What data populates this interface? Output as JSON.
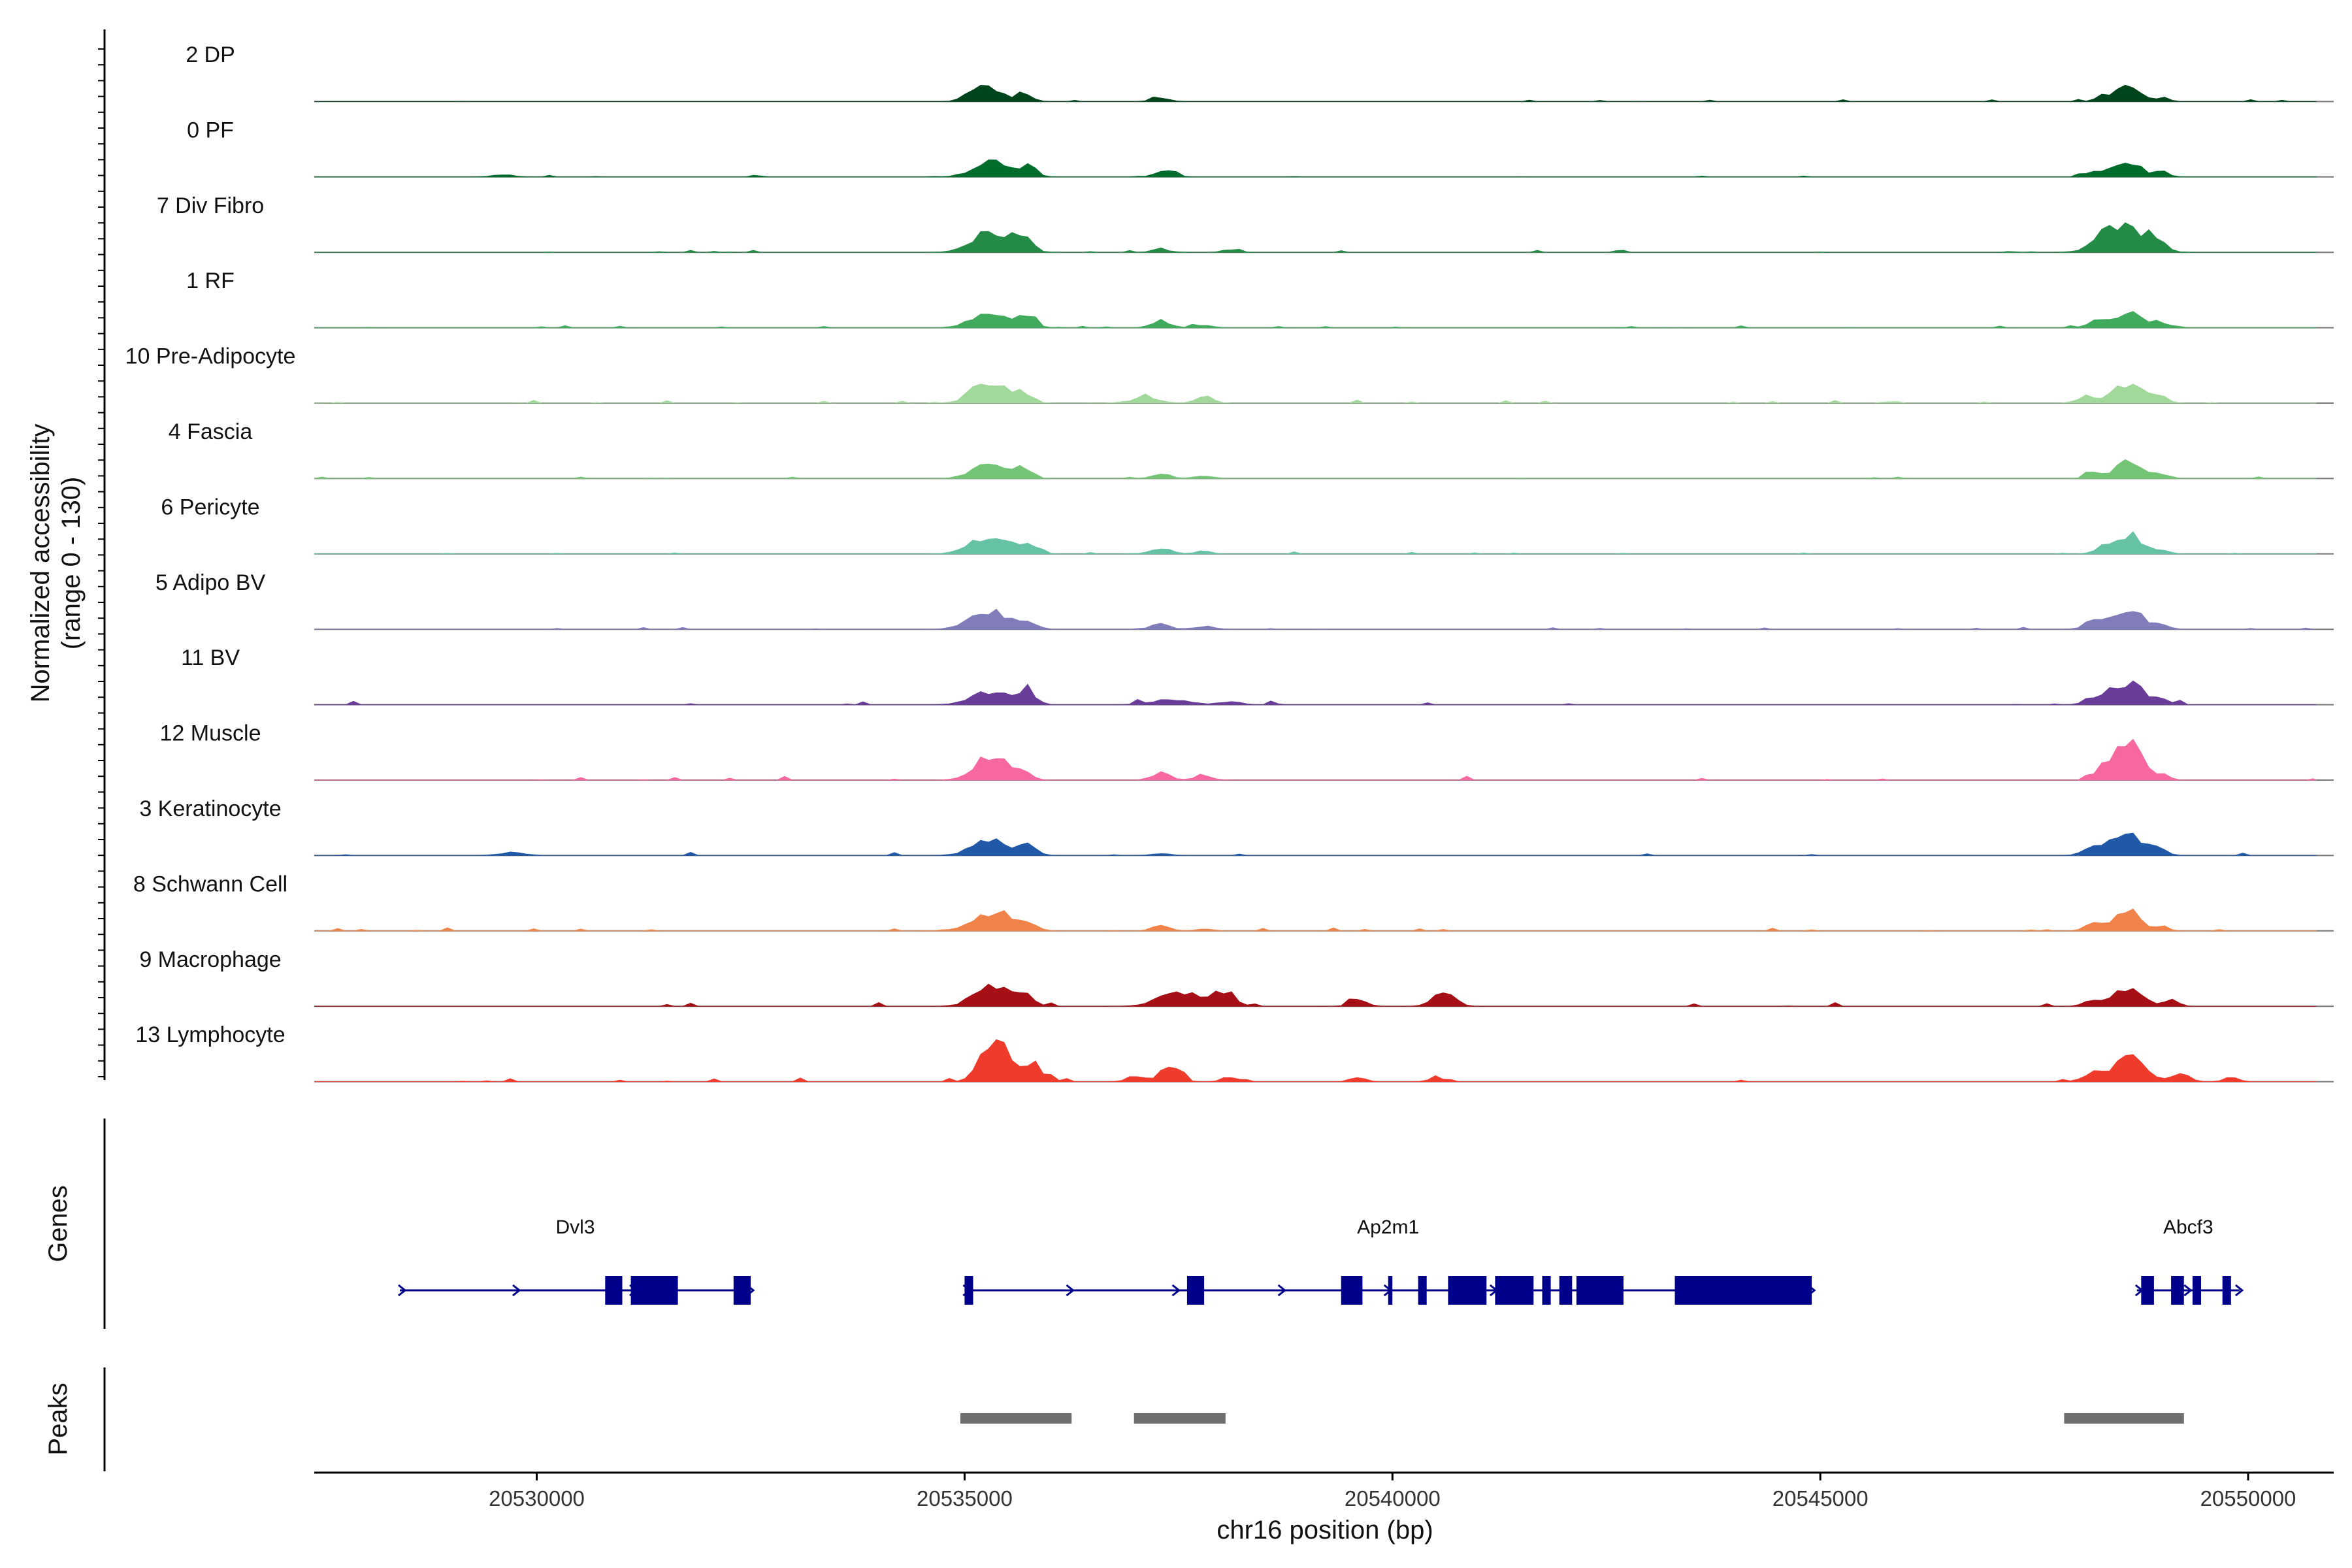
{
  "chart_data": {
    "type": "area",
    "chromosome": "chr16",
    "xlabel": "chr16 position (bp)",
    "ylabel": "Normalized accessibility",
    "ylabel_sub": "(range 0 - 130)",
    "ylim": [
      0,
      130
    ],
    "xlim": [
      20527400,
      20551000
    ],
    "x_ticks": [
      20530000,
      20535000,
      20540000,
      20545000,
      20550000
    ],
    "x_tick_labels": [
      "20530000",
      "20535000",
      "20540000",
      "20545000",
      "20550000"
    ],
    "coverage_range": [
      20527400,
      20550800
    ],
    "series": [
      {
        "name": "2 DP",
        "color": "#00441b",
        "peaks": [
          [
            20535250,
            30,
            170
          ],
          [
            20535700,
            18,
            90
          ],
          [
            20537300,
            8,
            100
          ],
          [
            20548600,
            36,
            140
          ],
          [
            20548300,
            10,
            90
          ],
          [
            20549000,
            8,
            70
          ]
        ],
        "noise": 2
      },
      {
        "name": "0 PF",
        "color": "#006d2c",
        "peaks": [
          [
            20529600,
            5,
            120
          ],
          [
            20535300,
            30,
            200
          ],
          [
            20535750,
            20,
            90
          ],
          [
            20537350,
            13,
            110
          ],
          [
            20548600,
            34,
            150
          ],
          [
            20548200,
            14,
            100
          ],
          [
            20549000,
            10,
            80
          ]
        ],
        "noise": 2
      },
      {
        "name": "7 Div Fibro",
        "color": "#238b45",
        "peaks": [
          [
            20535350,
            44,
            230
          ],
          [
            20535700,
            26,
            80
          ],
          [
            20537300,
            6,
            110
          ],
          [
            20538100,
            6,
            90
          ],
          [
            20548500,
            54,
            220
          ],
          [
            20548900,
            22,
            120
          ]
        ],
        "noise": 2
      },
      {
        "name": "1 RF",
        "color": "#41ab5d",
        "peaks": [
          [
            20535300,
            32,
            200
          ],
          [
            20535750,
            20,
            90
          ],
          [
            20537300,
            13,
            110
          ],
          [
            20537800,
            6,
            100
          ],
          [
            20548600,
            36,
            150
          ],
          [
            20548200,
            12,
            90
          ],
          [
            20549000,
            10,
            80
          ]
        ],
        "noise": 2
      },
      {
        "name": "10 Pre-Adipocyte",
        "color": "#a1d99b",
        "peaks": [
          [
            20535300,
            40,
            200
          ],
          [
            20535700,
            18,
            90
          ],
          [
            20537100,
            10,
            160
          ],
          [
            20537800,
            14,
            100
          ],
          [
            20548600,
            42,
            160
          ],
          [
            20548100,
            12,
            100
          ],
          [
            20549000,
            12,
            80
          ]
        ],
        "noise": 3
      },
      {
        "name": "4 Fascia",
        "color": "#74c476",
        "peaks": [
          [
            20535300,
            30,
            200
          ],
          [
            20535700,
            20,
            90
          ],
          [
            20537300,
            11,
            100
          ],
          [
            20537800,
            6,
            100
          ],
          [
            20548600,
            36,
            150
          ],
          [
            20548200,
            13,
            90
          ],
          [
            20549000,
            9,
            80
          ]
        ],
        "noise": 2
      },
      {
        "name": "6 Pericyte",
        "color": "#66c2a4",
        "peaks": [
          [
            20535300,
            34,
            220
          ],
          [
            20535750,
            20,
            100
          ],
          [
            20537300,
            10,
            120
          ],
          [
            20537800,
            6,
            90
          ],
          [
            20548600,
            40,
            150
          ],
          [
            20548300,
            12,
            100
          ],
          [
            20549000,
            8,
            80
          ]
        ],
        "noise": 2
      },
      {
        "name": "5 Adipo BV",
        "color": "#807dba",
        "peaks": [
          [
            20535300,
            36,
            220
          ],
          [
            20535750,
            16,
            90
          ],
          [
            20537300,
            12,
            100
          ],
          [
            20537800,
            6,
            120
          ],
          [
            20548600,
            42,
            160
          ],
          [
            20548200,
            18,
            110
          ],
          [
            20549000,
            8,
            90
          ]
        ],
        "noise": 2
      },
      {
        "name": "11 BV",
        "color": "#6a3d9a",
        "peaks": [
          [
            20535300,
            26,
            220
          ],
          [
            20535750,
            24,
            90
          ],
          [
            20537400,
            10,
            220
          ],
          [
            20538100,
            6,
            120
          ],
          [
            20548600,
            48,
            160
          ],
          [
            20548200,
            16,
            100
          ],
          [
            20549000,
            10,
            90
          ]
        ],
        "noise": 4
      },
      {
        "name": "12 Muscle",
        "color": "#f768a1",
        "peaks": [
          [
            20535300,
            54,
            180
          ],
          [
            20535700,
            16,
            90
          ],
          [
            20537300,
            14,
            110
          ],
          [
            20537800,
            8,
            100
          ],
          [
            20548600,
            74,
            150
          ],
          [
            20548300,
            20,
            100
          ],
          [
            20549000,
            10,
            80
          ]
        ],
        "noise": 4
      },
      {
        "name": "3 Keratinocyte",
        "color": "#2158a8",
        "peaks": [
          [
            20535300,
            34,
            200
          ],
          [
            20535750,
            20,
            100
          ],
          [
            20529700,
            6,
            150
          ],
          [
            20537300,
            4,
            100
          ],
          [
            20548600,
            44,
            180
          ],
          [
            20548200,
            20,
            110
          ],
          [
            20549000,
            8,
            80
          ]
        ],
        "noise": 3
      },
      {
        "name": "8 Schwann Cell",
        "color": "#f0834a",
        "peaks": [
          [
            20535300,
            36,
            220
          ],
          [
            20535750,
            16,
            100
          ],
          [
            20537300,
            11,
            100
          ],
          [
            20537800,
            4,
            100
          ],
          [
            20548600,
            40,
            150
          ],
          [
            20548200,
            14,
            100
          ],
          [
            20549000,
            8,
            80
          ]
        ],
        "noise": 3
      },
      {
        "name": "9 Macrophage",
        "color": "#a50f15",
        "peaks": [
          [
            20535300,
            48,
            180
          ],
          [
            20535700,
            24,
            100
          ],
          [
            20537500,
            28,
            220
          ],
          [
            20538000,
            26,
            150
          ],
          [
            20539600,
            12,
            100
          ],
          [
            20540600,
            28,
            120
          ],
          [
            20548600,
            40,
            150
          ],
          [
            20548200,
            14,
            100
          ],
          [
            20549100,
            12,
            80
          ]
        ],
        "noise": 4
      },
      {
        "name": "13 Lymphocyte",
        "color": "#ef3b2c",
        "peaks": [
          [
            20535350,
            95,
            150
          ],
          [
            20535800,
            28,
            140
          ],
          [
            20537400,
            36,
            100
          ],
          [
            20537000,
            12,
            100
          ],
          [
            20538100,
            10,
            90
          ],
          [
            20539600,
            10,
            80
          ],
          [
            20540500,
            8,
            80
          ],
          [
            20548600,
            48,
            170
          ],
          [
            20548200,
            20,
            120
          ],
          [
            20549200,
            16,
            110
          ],
          [
            20549800,
            10,
            80
          ]
        ],
        "noise": 4
      }
    ],
    "genes": [
      {
        "name": "Dvl3",
        "start": 20528400,
        "end": 20532500,
        "strand": "+",
        "exons": [
          [
            20530800,
            20531000
          ],
          [
            20531100,
            20531650
          ],
          [
            20532300,
            20532500
          ]
        ]
      },
      {
        "name": "Ap2m1",
        "start": 20535000,
        "end": 20544900,
        "strand": "+",
        "exons": [
          [
            20535000,
            20535100
          ],
          [
            20537600,
            20537800
          ],
          [
            20539400,
            20539650
          ],
          [
            20539950,
            20540000
          ],
          [
            20540300,
            20540400
          ],
          [
            20540650,
            20541100
          ],
          [
            20541200,
            20541650
          ],
          [
            20541750,
            20541850
          ],
          [
            20541950,
            20542100
          ],
          [
            20542150,
            20542700
          ],
          [
            20543300,
            20544900
          ]
        ]
      },
      {
        "name": "Abcf3",
        "start": 20548700,
        "end": 20549900,
        "strand": "+",
        "exons": [
          [
            20548750,
            20548900
          ],
          [
            20549100,
            20549250
          ],
          [
            20549350,
            20549450
          ],
          [
            20549700,
            20549800
          ]
        ]
      }
    ],
    "peak_regions": [
      [
        20534950,
        20536250
      ],
      [
        20536980,
        20538050
      ],
      [
        20547850,
        20549250
      ]
    ],
    "track_labels": {
      "genes": "Genes",
      "peaks": "Peaks"
    }
  }
}
